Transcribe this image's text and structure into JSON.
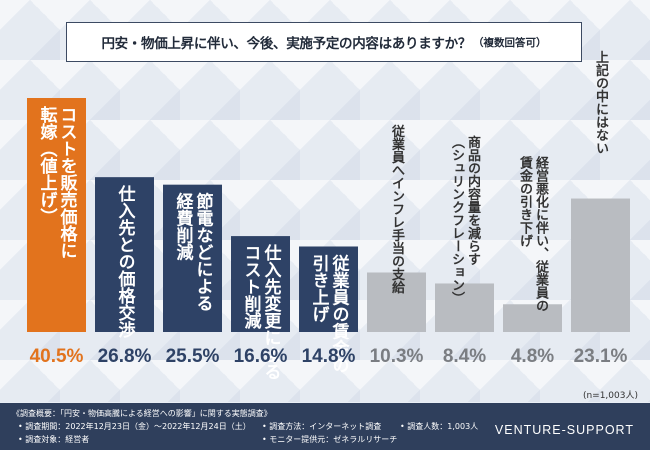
{
  "title": "円安・物価上昇に伴い、今後、実施予定の内容はありますか？",
  "title_sub": "（複数回答可）",
  "chart_data": {
    "type": "bar",
    "title": "円安・物価上昇に伴い、今後、実施予定の内容はありますか？（複数回答可）",
    "categories": [
      "コストを販売価格に転嫁（値上げ）",
      "仕入先との価格交渉",
      "節電などによる経費削減",
      "仕入先変更によるコスト削減",
      "従業員の賃金の引き上げ",
      "従業員へインフレ手当の支給",
      "商品の内容量を減らす（シュリンクフレーション）",
      "経営悪化に伴い、従業員の賃金の引き下げ",
      "上記の中にはない"
    ],
    "label_columns": [
      [
        "コストを販売価格に",
        "転嫁（値上げ）"
      ],
      [
        "仕入先との価格交渉"
      ],
      [
        "節電などによる",
        "経費削減"
      ],
      [
        "仕入先変更による",
        "コスト削減"
      ],
      [
        "従業員の賃金の",
        "引き上げ"
      ],
      [
        "従業員へインフレ手当の支給"
      ],
      [
        "商品の内容量を減らす",
        "（シュリンクフレーション）"
      ],
      [
        "経営悪化に伴い、従業員の",
        "賃金の引き下げ"
      ],
      [
        "上記の中にはない"
      ]
    ],
    "values": [
      40.5,
      26.8,
      25.5,
      16.6,
      14.8,
      10.3,
      8.4,
      4.8,
      23.1
    ],
    "value_labels": [
      "40.5%",
      "26.8%",
      "25.5%",
      "16.6%",
      "14.8%",
      "10.3%",
      "8.4%",
      "4.8%",
      "23.1%"
    ],
    "colors": [
      "#e2731d",
      "#2e4266",
      "#2e4266",
      "#2e4266",
      "#2e4266",
      "#b9bcc1",
      "#b9bcc1",
      "#b9bcc1",
      "#b9bcc1"
    ],
    "value_colors": [
      "#e2731d",
      "#2e4266",
      "#2e4266",
      "#2e4266",
      "#2e4266",
      "#7a7d82",
      "#7a7d82",
      "#7a7d82",
      "#7a7d82"
    ],
    "ylim": [
      0,
      40.5
    ],
    "n_note": "(n=1,003人)"
  },
  "footer": {
    "line1": "《調査概要：「円安・物価高騰による経営への影響」に関する実態調査》",
    "period": "• 調査期間：2022年12月23日（金）～2022年12月24日（土）",
    "method": "• 調査方法：インターネット調査",
    "count": "• 調査人数：1,003人",
    "target": "• 調査対象：経営者",
    "provider": "• モニター提供元：ゼネラルリサーチ",
    "brand": "VENTURE-SUPPORT"
  }
}
